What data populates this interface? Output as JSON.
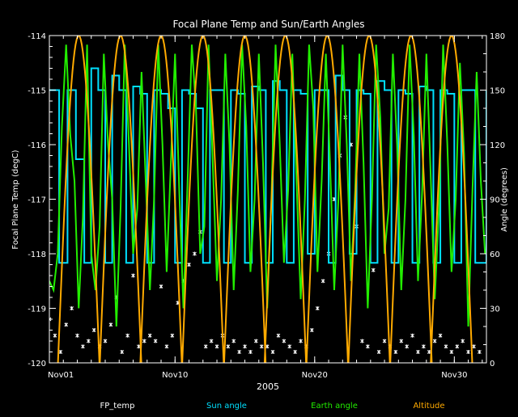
{
  "chart_data": {
    "type": "line",
    "title": "Focal Plane Temp and Sun/Earth Angles",
    "xlabel": "2005",
    "ylabel_left": "Focal Plane Temp (degC)",
    "ylabel_right": "Angle (degrees)",
    "x_unit": "day of November 2005",
    "xlim": [
      1,
      32.3
    ],
    "xticks": [
      {
        "x": 1,
        "label": "Nov01"
      },
      {
        "x": 10,
        "label": "Nov10"
      },
      {
        "x": 20,
        "label": "Nov20"
      },
      {
        "x": 30,
        "label": "Nov30"
      }
    ],
    "ylim_left": [
      -120,
      -114
    ],
    "yticks_left": [
      "-114",
      "-115",
      "-116",
      "-117",
      "-118",
      "-119",
      "-120"
    ],
    "ylim_right": [
      0,
      180
    ],
    "yticks_right": [
      "180",
      "150",
      "120",
      "90",
      "60",
      "30",
      "0"
    ],
    "legend": [
      "FP_temp",
      "Sun angle",
      "Earth angle",
      "Altitude"
    ],
    "legend_placement": "bottom",
    "colors": {
      "background": "#000000",
      "axes": "#ffffff",
      "fp_temp": "#ffffff",
      "sun_angle": "#00e0ff",
      "earth_angle": "#22ee00",
      "altitude": "#ffaa00"
    },
    "series": [
      {
        "name": "FP_temp",
        "axis": "left",
        "style": "points",
        "x": [
          1.0,
          1.4,
          1.8,
          2.2,
          2.6,
          3.0,
          3.4,
          3.8,
          4.2,
          4.6,
          5.0,
          5.4,
          5.8,
          6.2,
          6.6,
          7.0,
          7.4,
          7.8,
          8.2,
          8.6,
          9.0,
          9.4,
          9.8,
          10.2,
          10.6,
          11.0,
          11.4,
          11.8,
          12.2,
          12.6,
          13.0,
          13.4,
          13.8,
          14.2,
          14.6,
          15.0,
          15.4,
          15.8,
          16.2,
          16.6,
          17.0,
          17.4,
          17.8,
          18.2,
          18.6,
          19.0,
          19.4,
          19.8,
          20.2,
          20.6,
          21.0,
          21.4,
          21.8,
          22.2,
          22.6,
          23.0,
          23.4,
          23.8,
          24.2,
          24.6,
          25.0,
          25.4,
          25.8,
          26.2,
          26.6,
          27.0,
          27.4,
          27.8,
          28.2,
          28.6,
          29.0,
          29.4,
          29.8,
          30.2,
          30.6,
          31.0,
          31.4,
          31.8
        ],
        "y": [
          -119.2,
          -119.5,
          -119.8,
          -119.3,
          -119.0,
          -119.5,
          -119.7,
          -119.6,
          -119.4,
          -119.7,
          -119.6,
          -119.3,
          -118.8,
          -119.8,
          -119.5,
          -118.4,
          -119.7,
          -119.6,
          -119.5,
          -119.6,
          -118.6,
          -119.7,
          -119.5,
          -118.9,
          -118.5,
          -118.2,
          -118.0,
          -117.6,
          -119.7,
          -119.6,
          -119.7,
          -119.5,
          -119.7,
          -119.6,
          -119.8,
          -119.7,
          -119.8,
          -119.6,
          -119.7,
          -119.7,
          -119.8,
          -119.5,
          -119.6,
          -119.7,
          -119.8,
          -119.6,
          -119.7,
          -119.4,
          -119.0,
          -118.5,
          -118.0,
          -117.0,
          -116.2,
          -115.5,
          -116.0,
          -117.5,
          -119.6,
          -119.7,
          -118.3,
          -119.8,
          -119.6,
          -119.7,
          -119.8,
          -119.6,
          -119.7,
          -119.5,
          -119.8,
          -119.7,
          -119.8,
          -119.6,
          -119.5,
          -119.7,
          -119.8,
          -119.7,
          -119.6,
          -119.8,
          -119.7,
          -119.8
        ]
      },
      {
        "name": "Sun angle",
        "axis": "right",
        "style": "step",
        "x": [
          1.0,
          1.7,
          2.3,
          2.9,
          3.5,
          4.0,
          4.5,
          5.0,
          5.5,
          6.0,
          6.5,
          7.0,
          7.5,
          8.0,
          8.5,
          9.0,
          9.5,
          10.0,
          10.5,
          11.0,
          11.5,
          12.0,
          12.5,
          13.0,
          13.5,
          14.0,
          14.5,
          15.0,
          15.5,
          16.0,
          16.5,
          17.0,
          17.5,
          18.0,
          18.5,
          19.0,
          19.5,
          20.0,
          20.5,
          21.0,
          21.5,
          22.0,
          22.5,
          23.0,
          23.5,
          24.0,
          24.5,
          25.0,
          25.5,
          26.0,
          26.5,
          27.0,
          27.5,
          28.0,
          28.5,
          29.0,
          29.5,
          30.0,
          30.5,
          31.0,
          31.5,
          32.3
        ],
        "y": [
          150,
          55,
          150,
          112,
          55,
          162,
          150,
          55,
          158,
          150,
          55,
          152,
          148,
          55,
          150,
          148,
          140,
          55,
          150,
          148,
          140,
          55,
          150,
          150,
          55,
          150,
          148,
          55,
          152,
          150,
          55,
          155,
          150,
          55,
          150,
          148,
          60,
          150,
          150,
          55,
          158,
          150,
          60,
          150,
          148,
          55,
          155,
          150,
          55,
          150,
          148,
          55,
          152,
          150,
          55,
          150,
          148,
          55,
          150,
          150,
          55,
          150
        ]
      },
      {
        "name": "Earth angle",
        "axis": "right",
        "style": "line",
        "x": [
          1.0,
          1.3,
          1.6,
          1.9,
          2.2,
          2.5,
          2.8,
          3.1,
          3.4,
          3.7,
          4.0,
          4.3,
          4.6,
          4.9,
          5.2,
          5.5,
          5.8,
          6.1,
          6.4,
          6.7,
          7.0,
          7.3,
          7.6,
          7.9,
          8.2,
          8.5,
          8.8,
          9.1,
          9.4,
          9.7,
          10.0,
          10.3,
          10.6,
          10.9,
          11.2,
          11.5,
          11.8,
          12.1,
          12.4,
          12.7,
          13.0,
          13.3,
          13.6,
          13.9,
          14.2,
          14.5,
          14.8,
          15.1,
          15.4,
          15.7,
          16.0,
          16.3,
          16.6,
          16.9,
          17.2,
          17.5,
          17.8,
          18.1,
          18.4,
          18.7,
          19.0,
          19.3,
          19.6,
          19.9,
          20.2,
          20.5,
          20.8,
          21.1,
          21.4,
          21.7,
          22.0,
          22.3,
          22.6,
          22.9,
          23.2,
          23.5,
          23.8,
          24.1,
          24.4,
          24.7,
          25.0,
          25.3,
          25.6,
          25.9,
          26.2,
          26.5,
          26.8,
          27.1,
          27.4,
          27.7,
          28.0,
          28.3,
          28.6,
          28.9,
          29.2,
          29.5,
          29.8,
          30.1,
          30.4,
          30.7,
          31.0,
          31.3,
          31.6,
          31.9,
          32.2
        ],
        "y": [
          45,
          40,
          60,
          130,
          175,
          125,
          100,
          30,
          80,
          175,
          60,
          40,
          75,
          170,
          120,
          90,
          20,
          85,
          175,
          120,
          60,
          85,
          160,
          100,
          40,
          90,
          175,
          120,
          50,
          110,
          170,
          95,
          30,
          100,
          175,
          140,
          60,
          75,
          175,
          110,
          45,
          90,
          170,
          120,
          40,
          95,
          175,
          130,
          50,
          90,
          170,
          110,
          30,
          90,
          175,
          120,
          55,
          95,
          170,
          100,
          35,
          90,
          175,
          140,
          50,
          100,
          170,
          110,
          40,
          90,
          175,
          120,
          45,
          95,
          170,
          110,
          30,
          90,
          175,
          135,
          60,
          85,
          170,
          120,
          40,
          90,
          175,
          125,
          45,
          95,
          170,
          105,
          35,
          85,
          175,
          120,
          50,
          90,
          165,
          115,
          20,
          95,
          160,
          100,
          60
        ]
      },
      {
        "name": "Altitude",
        "axis": "right",
        "style": "line",
        "peaks_x": [
          3.1,
          6.1,
          9.0,
          12.0,
          15.0,
          17.9,
          20.9,
          23.9,
          26.9,
          29.8
        ],
        "peak_y": 180,
        "trough_y": 0,
        "period_days": 2.97
      }
    ]
  }
}
